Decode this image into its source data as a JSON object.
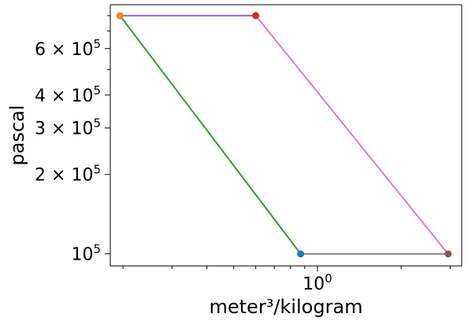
{
  "chart_data": {
    "type": "line",
    "title": "",
    "xlabel": "meter³/kilogram",
    "ylabel": "pascal",
    "xscale": "log",
    "yscale": "log",
    "xlim": [
      0.18,
      3.3
    ],
    "ylim": [
      90000,
      880000
    ],
    "grid": false,
    "x_ticks": [
      {
        "value": 1,
        "mantissa": "10",
        "exponent": "0"
      }
    ],
    "y_ticks": [
      {
        "value": 100000,
        "coef": "",
        "mantissa": "10",
        "exponent": "5"
      },
      {
        "value": 200000,
        "coef": "2 × ",
        "mantissa": "10",
        "exponent": "5"
      },
      {
        "value": 300000,
        "coef": "3 × ",
        "mantissa": "10",
        "exponent": "5"
      },
      {
        "value": 400000,
        "coef": "4 × ",
        "mantissa": "10",
        "exponent": "5"
      },
      {
        "value": 600000,
        "coef": "6 × ",
        "mantissa": "10",
        "exponent": "5"
      }
    ],
    "y_minor_ticks": [
      500000,
      700000,
      800000
    ],
    "series": [
      {
        "color": "#9467bd",
        "points": [
          [
            0.195,
            800000
          ],
          [
            0.6,
            800000
          ]
        ]
      },
      {
        "color": "#e377c2",
        "points": [
          [
            0.6,
            800000
          ],
          [
            2.95,
            100000
          ]
        ]
      },
      {
        "color": "#7f7f7f",
        "points": [
          [
            0.87,
            100000
          ],
          [
            2.95,
            100000
          ]
        ]
      },
      {
        "color": "#2ca02c",
        "points": [
          [
            0.195,
            800000
          ],
          [
            0.87,
            100000
          ]
        ]
      }
    ],
    "markers": [
      {
        "x": 0.195,
        "y": 800000,
        "color": "#ff7f0e"
      },
      {
        "x": 0.6,
        "y": 800000,
        "color": "#d62728"
      },
      {
        "x": 0.87,
        "y": 100000,
        "color": "#1f77b4"
      },
      {
        "x": 2.95,
        "y": 100000,
        "color": "#8c564b"
      }
    ]
  }
}
